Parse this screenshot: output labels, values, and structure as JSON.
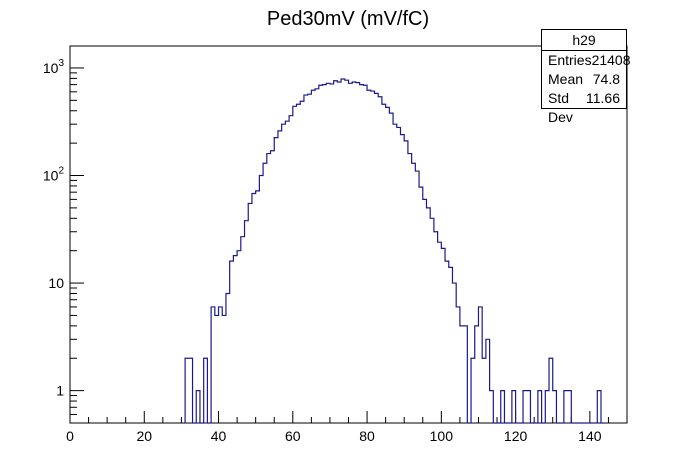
{
  "chart_data": {
    "type": "histogram",
    "title": "Ped30mV (mV/fC)",
    "xlabel": "",
    "ylabel": "",
    "x_range": [
      0,
      150
    ],
    "y_log": true,
    "y_range": [
      0.5,
      1600
    ],
    "x_ticks": [
      0,
      20,
      40,
      60,
      80,
      100,
      120,
      140
    ],
    "y_ticks": [
      {
        "value": 1,
        "base": "1",
        "exp": ""
      },
      {
        "value": 10,
        "base": "10",
        "exp": ""
      },
      {
        "value": 100,
        "base": "10",
        "exp": "2"
      },
      {
        "value": 1000,
        "base": "10",
        "exp": "3"
      }
    ],
    "line_color": "#1a1a8c",
    "bin_width": 1,
    "bins": [
      [
        31,
        2
      ],
      [
        32,
        2
      ],
      [
        33,
        0
      ],
      [
        34,
        1
      ],
      [
        35,
        0
      ],
      [
        36,
        2
      ],
      [
        37,
        0
      ],
      [
        38,
        6
      ],
      [
        39,
        5
      ],
      [
        40,
        6
      ],
      [
        41,
        5
      ],
      [
        42,
        8
      ],
      [
        43,
        16
      ],
      [
        44,
        18
      ],
      [
        45,
        20
      ],
      [
        46,
        27
      ],
      [
        47,
        38
      ],
      [
        48,
        55
      ],
      [
        49,
        68
      ],
      [
        50,
        72
      ],
      [
        51,
        100
      ],
      [
        52,
        130
      ],
      [
        53,
        160
      ],
      [
        54,
        170
      ],
      [
        55,
        225
      ],
      [
        56,
        260
      ],
      [
        57,
        300
      ],
      [
        58,
        320
      ],
      [
        59,
        360
      ],
      [
        60,
        440
      ],
      [
        61,
        460
      ],
      [
        62,
        490
      ],
      [
        63,
        560
      ],
      [
        64,
        570
      ],
      [
        65,
        620
      ],
      [
        66,
        640
      ],
      [
        67,
        690
      ],
      [
        68,
        700
      ],
      [
        69,
        720
      ],
      [
        70,
        710
      ],
      [
        71,
        760
      ],
      [
        72,
        740
      ],
      [
        73,
        790
      ],
      [
        74,
        770
      ],
      [
        75,
        720
      ],
      [
        76,
        740
      ],
      [
        77,
        730
      ],
      [
        78,
        700
      ],
      [
        79,
        690
      ],
      [
        80,
        620
      ],
      [
        81,
        610
      ],
      [
        82,
        580
      ],
      [
        83,
        540
      ],
      [
        84,
        460
      ],
      [
        85,
        430
      ],
      [
        86,
        380
      ],
      [
        87,
        300
      ],
      [
        88,
        280
      ],
      [
        89,
        240
      ],
      [
        90,
        210
      ],
      [
        91,
        160
      ],
      [
        92,
        130
      ],
      [
        93,
        110
      ],
      [
        94,
        78
      ],
      [
        95,
        60
      ],
      [
        96,
        50
      ],
      [
        97,
        40
      ],
      [
        98,
        30
      ],
      [
        99,
        24
      ],
      [
        100,
        21
      ],
      [
        101,
        16
      ],
      [
        102,
        14
      ],
      [
        103,
        10
      ],
      [
        104,
        6
      ],
      [
        105,
        4
      ],
      [
        106,
        4
      ],
      [
        107,
        0
      ],
      [
        108,
        2
      ],
      [
        109,
        4
      ],
      [
        110,
        6
      ],
      [
        111,
        2
      ],
      [
        112,
        3
      ],
      [
        113,
        1
      ],
      [
        114,
        0
      ],
      [
        115,
        0
      ],
      [
        116,
        1
      ],
      [
        117,
        0
      ],
      [
        118,
        0
      ],
      [
        119,
        1
      ],
      [
        120,
        0
      ],
      [
        121,
        0
      ],
      [
        122,
        1
      ],
      [
        123,
        1
      ],
      [
        124,
        0
      ],
      [
        125,
        0
      ],
      [
        126,
        1
      ],
      [
        127,
        0
      ],
      [
        128,
        1
      ],
      [
        129,
        2
      ],
      [
        130,
        1
      ],
      [
        131,
        0
      ],
      [
        132,
        0
      ],
      [
        133,
        1
      ],
      [
        134,
        1
      ],
      [
        135,
        0
      ],
      [
        136,
        0
      ],
      [
        137,
        0
      ],
      [
        138,
        0
      ],
      [
        139,
        0
      ],
      [
        140,
        0
      ],
      [
        141,
        0
      ],
      [
        142,
        1
      ],
      [
        143,
        0
      ]
    ]
  },
  "stats": {
    "name": "h29",
    "entries_label": "Entries",
    "entries_value": "21408",
    "mean_label": "Mean",
    "mean_value": "74.8",
    "stddev_label": "Std Dev",
    "stddev_value": "11.66"
  }
}
